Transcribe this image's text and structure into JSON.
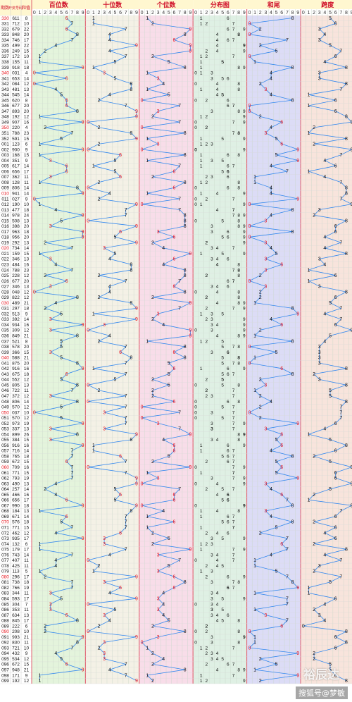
{
  "chart_data": {
    "type": "table",
    "columns": {
      "period": "期数",
      "draw": "开奖号码",
      "sum": "和值"
    },
    "sections": [
      {
        "key": "hundreds",
        "title": "百位数"
      },
      {
        "key": "tens",
        "title": "十位数"
      },
      {
        "key": "units",
        "title": "个位数"
      },
      {
        "key": "distribution",
        "title": "分布图"
      },
      {
        "key": "sum_tail",
        "title": "和尾"
      },
      {
        "key": "span",
        "title": "跨度"
      }
    ],
    "digits": [
      "0",
      "1",
      "2",
      "3",
      "4",
      "5",
      "6",
      "7",
      "8",
      "9"
    ],
    "rows": [
      {
        "period": "330",
        "draw": "611"
      },
      {
        "period": "331",
        "draw": "712"
      },
      {
        "period": "332",
        "draw": "679"
      },
      {
        "period": "333",
        "draw": "848"
      },
      {
        "period": "334",
        "draw": "746"
      },
      {
        "period": "335",
        "draw": "499"
      },
      {
        "period": "336",
        "draw": "249"
      },
      {
        "period": "337",
        "draw": "172"
      },
      {
        "period": "338",
        "draw": "155"
      },
      {
        "period": "339",
        "draw": "918"
      },
      {
        "period": "340",
        "draw": "031"
      },
      {
        "period": "341",
        "draw": "653"
      },
      {
        "period": "342",
        "draw": "084"
      },
      {
        "period": "343",
        "draw": "481"
      },
      {
        "period": "344",
        "draw": "545"
      },
      {
        "period": "345",
        "draw": "620"
      },
      {
        "period": "346",
        "draw": "677"
      },
      {
        "period": "347",
        "draw": "893"
      },
      {
        "period": "348",
        "draw": "192"
      },
      {
        "period": "349",
        "draw": "907"
      },
      {
        "period": "350",
        "draw": "220"
      },
      {
        "period": "351",
        "draw": "788"
      },
      {
        "period": "352",
        "draw": "591"
      },
      {
        "period": "001",
        "draw": "123"
      },
      {
        "period": "002",
        "draw": "900"
      },
      {
        "period": "003",
        "draw": "168"
      },
      {
        "period": "004",
        "draw": "351"
      },
      {
        "period": "005",
        "draw": "617"
      },
      {
        "period": "006",
        "draw": "656"
      },
      {
        "period": "007",
        "draw": "362"
      },
      {
        "period": "008",
        "draw": "128"
      },
      {
        "period": "009",
        "draw": "806"
      },
      {
        "period": "010",
        "draw": "941"
      },
      {
        "period": "011",
        "draw": "027"
      },
      {
        "period": "012",
        "draw": "190"
      },
      {
        "period": "013",
        "draw": "477"
      },
      {
        "period": "014",
        "draw": "978"
      },
      {
        "period": "015",
        "draw": "508"
      },
      {
        "period": "016",
        "draw": "398"
      },
      {
        "period": "017",
        "draw": "963"
      },
      {
        "period": "018",
        "draw": "956"
      },
      {
        "period": "019",
        "draw": "292"
      },
      {
        "period": "020",
        "draw": "734"
      },
      {
        "period": "021",
        "draw": "159"
      },
      {
        "period": "022",
        "draw": "346"
      },
      {
        "period": "023",
        "draw": "484"
      },
      {
        "period": "024",
        "draw": "788"
      },
      {
        "period": "025",
        "draw": "228"
      },
      {
        "period": "026",
        "draw": "677"
      },
      {
        "period": "027",
        "draw": "346"
      },
      {
        "period": "028",
        "draw": "048"
      },
      {
        "period": "029",
        "draw": "822"
      },
      {
        "period": "030",
        "draw": "489"
      },
      {
        "period": "031",
        "draw": "297"
      },
      {
        "period": "032",
        "draw": "513"
      },
      {
        "period": "033",
        "draw": "392"
      },
      {
        "period": "034",
        "draw": "934"
      },
      {
        "period": "035",
        "draw": "309"
      },
      {
        "period": "036",
        "draw": "849"
      },
      {
        "period": "037",
        "draw": "521"
      },
      {
        "period": "038",
        "draw": "578"
      },
      {
        "period": "039",
        "draw": "366"
      },
      {
        "period": "040",
        "draw": "588"
      },
      {
        "period": "041",
        "draw": "875"
      },
      {
        "period": "042",
        "draw": "916"
      },
      {
        "period": "043",
        "draw": "675"
      },
      {
        "period": "044",
        "draw": "552"
      },
      {
        "period": "045",
        "draw": "805"
      },
      {
        "period": "046",
        "draw": "722"
      },
      {
        "period": "047",
        "draw": "372"
      },
      {
        "period": "048",
        "draw": "806"
      },
      {
        "period": "049",
        "draw": "570"
      },
      {
        "period": "050",
        "draw": "037"
      },
      {
        "period": "051",
        "draw": "570"
      },
      {
        "period": "052",
        "draw": "973"
      },
      {
        "period": "053",
        "draw": "337"
      },
      {
        "period": "054",
        "draw": "899"
      },
      {
        "period": "055",
        "draw": "384"
      },
      {
        "period": "056",
        "draw": "916"
      },
      {
        "period": "057",
        "draw": "716"
      },
      {
        "period": "058",
        "draw": "765"
      },
      {
        "period": "059",
        "draw": "672"
      },
      {
        "period": "060",
        "draw": "709"
      },
      {
        "period": "061",
        "draw": "771"
      },
      {
        "period": "062",
        "draw": "793"
      },
      {
        "period": "063",
        "draw": "490"
      },
      {
        "period": "064",
        "draw": "257"
      },
      {
        "period": "065",
        "draw": "466"
      },
      {
        "period": "066",
        "draw": "656"
      },
      {
        "period": "067",
        "draw": "990"
      },
      {
        "period": "068",
        "draw": "184"
      },
      {
        "period": "069",
        "draw": "671"
      },
      {
        "period": "070",
        "draw": "576"
      },
      {
        "period": "071",
        "draw": "771"
      },
      {
        "period": "072",
        "draw": "462"
      },
      {
        "period": "073",
        "draw": "935"
      },
      {
        "period": "074",
        "draw": "132"
      },
      {
        "period": "075",
        "draw": "179"
      },
      {
        "period": "076",
        "draw": "743"
      },
      {
        "period": "077",
        "draw": "407"
      },
      {
        "period": "078",
        "draw": "425"
      },
      {
        "period": "079",
        "draw": "113"
      },
      {
        "period": "080",
        "draw": "296"
      },
      {
        "period": "081",
        "draw": "738"
      },
      {
        "period": "082",
        "draw": "766"
      },
      {
        "period": "083",
        "draw": "344"
      },
      {
        "period": "084",
        "draw": "593"
      },
      {
        "period": "085",
        "draw": "304"
      },
      {
        "period": "086",
        "draw": "353"
      },
      {
        "period": "087",
        "draw": "634"
      },
      {
        "period": "088",
        "draw": "845"
      },
      {
        "period": "089",
        "draw": "222"
      },
      {
        "period": "090",
        "draw": "208"
      },
      {
        "period": "091",
        "draw": "993"
      },
      {
        "period": "092",
        "draw": "830"
      },
      {
        "period": "093",
        "draw": "721"
      },
      {
        "period": "094",
        "draw": "432"
      },
      {
        "period": "095",
        "draw": "534"
      },
      {
        "period": "096",
        "draw": "672"
      },
      {
        "period": "097",
        "draw": "948"
      },
      {
        "period": "098",
        "draw": "171"
      },
      {
        "period": "099",
        "draw": "192"
      }
    ],
    "colors": {
      "hundreds_bg": "#e4f4dc",
      "tens_bg": "#f4f1e6",
      "units_bg": "#f8dde9",
      "distribution_bg": "#dff0e4",
      "sum_tail_bg": "#dcdcf6",
      "span_bg": "#f8e4dc",
      "header_bg": "#fff7d0",
      "header_text": "#d0102a",
      "line": "#3388ee",
      "digit": "#111111",
      "digit_red": "#e8141c",
      "digit_blue": "#2233cc"
    }
  },
  "watermark": {
    "main": "裕辰达",
    "sub": "搜狐号@梦敏"
  }
}
